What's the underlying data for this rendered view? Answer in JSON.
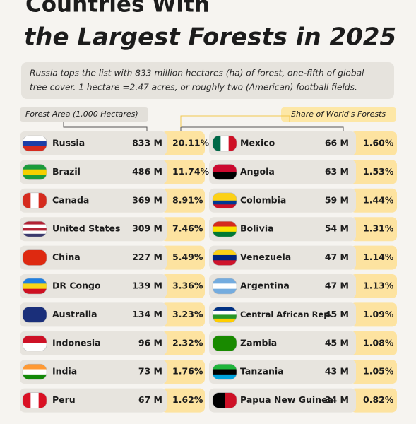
{
  "header": {
    "title_line1": "Countries With",
    "title_line2": "the Largest Forests in 2025",
    "subtitle_line1": "Russia tops the list with 833 million hectares (ha) of forest, one-fifth of global",
    "subtitle_line2": "tree cover. 1 hectare =2.47 acres, or roughly two (American) football fields."
  },
  "labels": {
    "area": "Forest Area (1,000 Hectares)",
    "share": "Share of World's Forests"
  },
  "table": {
    "rows": [
      {
        "country": "Russia",
        "forest_area": "833 M",
        "share": "20.11%"
      },
      {
        "country": "Brazil",
        "forest_area": "486 M",
        "share": "11.74%"
      },
      {
        "country": "Canada",
        "forest_area": "369 M",
        "share": "8.91%"
      },
      {
        "country": "United States",
        "forest_area": "309 M",
        "share": "7.46%"
      },
      {
        "country": "China",
        "forest_area": "227 M",
        "share": "5.49%"
      },
      {
        "country": "DR Congo",
        "forest_area": "139 M",
        "share": "3.36%"
      },
      {
        "country": "Australia",
        "forest_area": "134 M",
        "share": "3.23%"
      },
      {
        "country": "Indonesia",
        "forest_area": "96 M",
        "share": "2.32%"
      },
      {
        "country": "India",
        "forest_area": "73 M",
        "share": "1.76%"
      },
      {
        "country": "Peru",
        "forest_area": "67 M",
        "share": "1.62%"
      },
      {
        "country": "Mexico",
        "forest_area": "66 M",
        "share": "1.60%"
      },
      {
        "country": "Angola",
        "forest_area": "63 M",
        "share": "1.53%"
      },
      {
        "country": "Colombia",
        "forest_area": "59 M",
        "share": "1.44%"
      },
      {
        "country": "Bolivia",
        "forest_area": "54 M",
        "share": "1.31%"
      },
      {
        "country": "Venezuela",
        "forest_area": "47 M",
        "share": "1.14%"
      },
      {
        "country": "Argentina",
        "forest_area": "47 M",
        "share": "1.13%"
      },
      {
        "country": "Central African Rep.",
        "forest_area": "45 M",
        "share": "1.09%"
      },
      {
        "country": "Zambia",
        "forest_area": "45 M",
        "share": "1.08%"
      },
      {
        "country": "Tanzania",
        "forest_area": "43 M",
        "share": "1.05%"
      },
      {
        "country": "Papua New Guinea",
        "forest_area": "34 M",
        "share": "0.82%"
      }
    ]
  }
}
